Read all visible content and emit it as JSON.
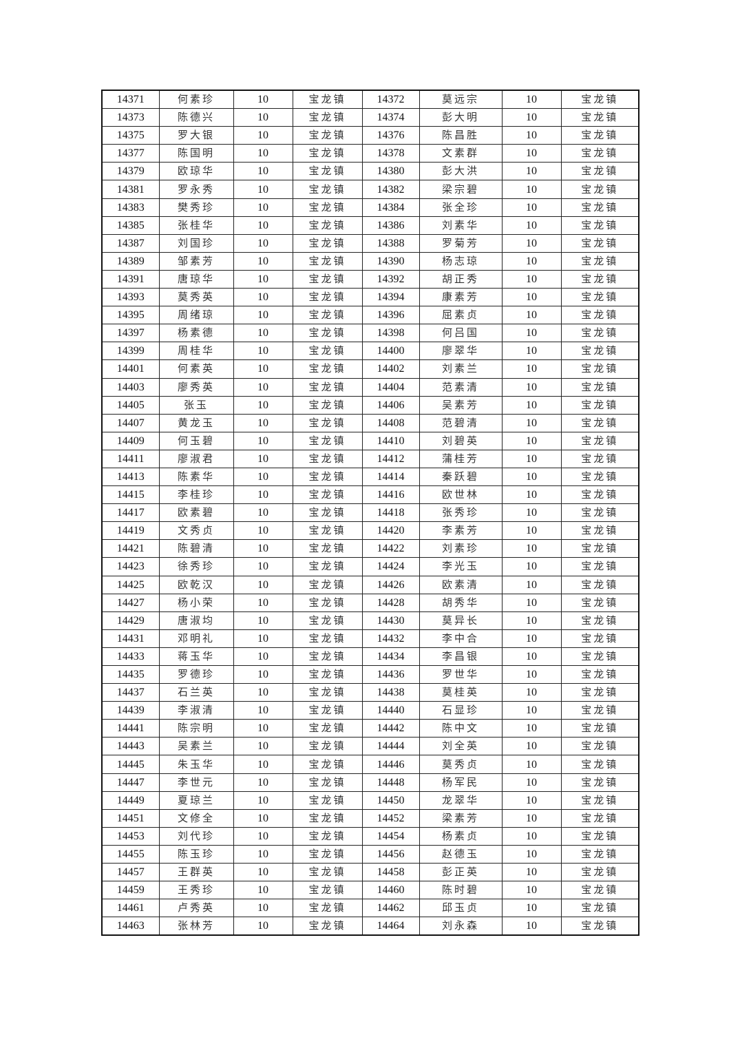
{
  "table": {
    "rows": [
      [
        "14371",
        "何素珍",
        "10",
        "宝龙镇",
        "14372",
        "莫远宗",
        "10",
        "宝龙镇"
      ],
      [
        "14373",
        "陈德兴",
        "10",
        "宝龙镇",
        "14374",
        "彭大明",
        "10",
        "宝龙镇"
      ],
      [
        "14375",
        "罗大银",
        "10",
        "宝龙镇",
        "14376",
        "陈昌胜",
        "10",
        "宝龙镇"
      ],
      [
        "14377",
        "陈国明",
        "10",
        "宝龙镇",
        "14378",
        "文素群",
        "10",
        "宝龙镇"
      ],
      [
        "14379",
        "欧琼华",
        "10",
        "宝龙镇",
        "14380",
        "彭大洪",
        "10",
        "宝龙镇"
      ],
      [
        "14381",
        "罗永秀",
        "10",
        "宝龙镇",
        "14382",
        "梁宗碧",
        "10",
        "宝龙镇"
      ],
      [
        "14383",
        "樊秀珍",
        "10",
        "宝龙镇",
        "14384",
        "张全珍",
        "10",
        "宝龙镇"
      ],
      [
        "14385",
        "张桂华",
        "10",
        "宝龙镇",
        "14386",
        "刘素华",
        "10",
        "宝龙镇"
      ],
      [
        "14387",
        "刘国珍",
        "10",
        "宝龙镇",
        "14388",
        "罗菊芳",
        "10",
        "宝龙镇"
      ],
      [
        "14389",
        "邹素芳",
        "10",
        "宝龙镇",
        "14390",
        "杨志琼",
        "10",
        "宝龙镇"
      ],
      [
        "14391",
        "唐琼华",
        "10",
        "宝龙镇",
        "14392",
        "胡正秀",
        "10",
        "宝龙镇"
      ],
      [
        "14393",
        "莫秀英",
        "10",
        "宝龙镇",
        "14394",
        "康素芳",
        "10",
        "宝龙镇"
      ],
      [
        "14395",
        "周绪琼",
        "10",
        "宝龙镇",
        "14396",
        "屈素贞",
        "10",
        "宝龙镇"
      ],
      [
        "14397",
        "杨素德",
        "10",
        "宝龙镇",
        "14398",
        "何吕国",
        "10",
        "宝龙镇"
      ],
      [
        "14399",
        "周桂华",
        "10",
        "宝龙镇",
        "14400",
        "廖翠华",
        "10",
        "宝龙镇"
      ],
      [
        "14401",
        "何素英",
        "10",
        "宝龙镇",
        "14402",
        "刘素兰",
        "10",
        "宝龙镇"
      ],
      [
        "14403",
        "廖秀英",
        "10",
        "宝龙镇",
        "14404",
        "范素清",
        "10",
        "宝龙镇"
      ],
      [
        "14405",
        "张玉",
        "10",
        "宝龙镇",
        "14406",
        "吴素芳",
        "10",
        "宝龙镇"
      ],
      [
        "14407",
        "黄龙玉",
        "10",
        "宝龙镇",
        "14408",
        "范碧清",
        "10",
        "宝龙镇"
      ],
      [
        "14409",
        "何玉碧",
        "10",
        "宝龙镇",
        "14410",
        "刘碧英",
        "10",
        "宝龙镇"
      ],
      [
        "14411",
        "廖淑君",
        "10",
        "宝龙镇",
        "14412",
        "蒲桂芳",
        "10",
        "宝龙镇"
      ],
      [
        "14413",
        "陈素华",
        "10",
        "宝龙镇",
        "14414",
        "秦跃碧",
        "10",
        "宝龙镇"
      ],
      [
        "14415",
        "李桂珍",
        "10",
        "宝龙镇",
        "14416",
        "欧世林",
        "10",
        "宝龙镇"
      ],
      [
        "14417",
        "欧素碧",
        "10",
        "宝龙镇",
        "14418",
        "张秀珍",
        "10",
        "宝龙镇"
      ],
      [
        "14419",
        "文秀贞",
        "10",
        "宝龙镇",
        "14420",
        "李素芳",
        "10",
        "宝龙镇"
      ],
      [
        "14421",
        "陈碧清",
        "10",
        "宝龙镇",
        "14422",
        "刘素珍",
        "10",
        "宝龙镇"
      ],
      [
        "14423",
        "徐秀珍",
        "10",
        "宝龙镇",
        "14424",
        "李光玉",
        "10",
        "宝龙镇"
      ],
      [
        "14425",
        "欧乾汉",
        "10",
        "宝龙镇",
        "14426",
        "欧素清",
        "10",
        "宝龙镇"
      ],
      [
        "14427",
        "杨小荣",
        "10",
        "宝龙镇",
        "14428",
        "胡秀华",
        "10",
        "宝龙镇"
      ],
      [
        "14429",
        "唐淑均",
        "10",
        "宝龙镇",
        "14430",
        "莫异长",
        "10",
        "宝龙镇"
      ],
      [
        "14431",
        "邓明礼",
        "10",
        "宝龙镇",
        "14432",
        "李中合",
        "10",
        "宝龙镇"
      ],
      [
        "14433",
        "蒋玉华",
        "10",
        "宝龙镇",
        "14434",
        "李昌银",
        "10",
        "宝龙镇"
      ],
      [
        "14435",
        "罗德珍",
        "10",
        "宝龙镇",
        "14436",
        "罗世华",
        "10",
        "宝龙镇"
      ],
      [
        "14437",
        "石兰英",
        "10",
        "宝龙镇",
        "14438",
        "莫桂英",
        "10",
        "宝龙镇"
      ],
      [
        "14439",
        "李淑清",
        "10",
        "宝龙镇",
        "14440",
        "石显珍",
        "10",
        "宝龙镇"
      ],
      [
        "14441",
        "陈宗明",
        "10",
        "宝龙镇",
        "14442",
        "陈中文",
        "10",
        "宝龙镇"
      ],
      [
        "14443",
        "吴素兰",
        "10",
        "宝龙镇",
        "14444",
        "刘全英",
        "10",
        "宝龙镇"
      ],
      [
        "14445",
        "朱玉华",
        "10",
        "宝龙镇",
        "14446",
        "莫秀贞",
        "10",
        "宝龙镇"
      ],
      [
        "14447",
        "李世元",
        "10",
        "宝龙镇",
        "14448",
        "杨军民",
        "10",
        "宝龙镇"
      ],
      [
        "14449",
        "夏琼兰",
        "10",
        "宝龙镇",
        "14450",
        "龙翠华",
        "10",
        "宝龙镇"
      ],
      [
        "14451",
        "文修全",
        "10",
        "宝龙镇",
        "14452",
        "梁素芳",
        "10",
        "宝龙镇"
      ],
      [
        "14453",
        "刘代珍",
        "10",
        "宝龙镇",
        "14454",
        "杨素贞",
        "10",
        "宝龙镇"
      ],
      [
        "14455",
        "陈玉珍",
        "10",
        "宝龙镇",
        "14456",
        "赵德玉",
        "10",
        "宝龙镇"
      ],
      [
        "14457",
        "王群英",
        "10",
        "宝龙镇",
        "14458",
        "彭正英",
        "10",
        "宝龙镇"
      ],
      [
        "14459",
        "王秀珍",
        "10",
        "宝龙镇",
        "14460",
        "陈时碧",
        "10",
        "宝龙镇"
      ],
      [
        "14461",
        "卢秀英",
        "10",
        "宝龙镇",
        "14462",
        "邱玉贞",
        "10",
        "宝龙镇"
      ],
      [
        "14463",
        "张林芳",
        "10",
        "宝龙镇",
        "14464",
        "刘永森",
        "10",
        "宝龙镇"
      ]
    ]
  }
}
